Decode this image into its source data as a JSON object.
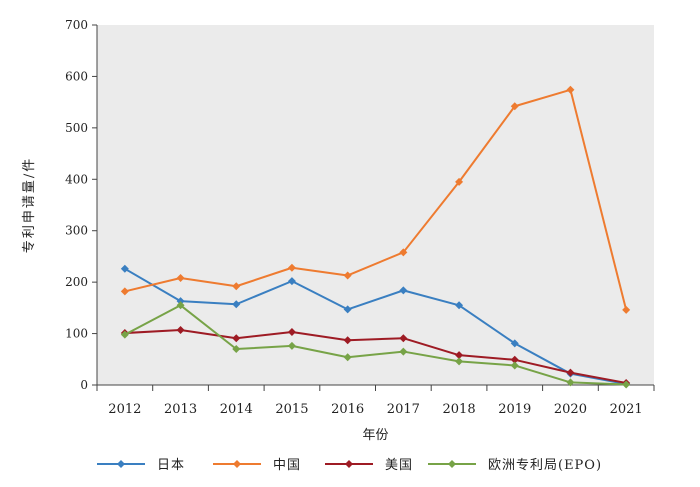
{
  "chart_data": {
    "type": "line",
    "title": "",
    "xlabel": "年份",
    "ylabel": "专利申请量/件",
    "categories": [
      "2012",
      "2013",
      "2014",
      "2015",
      "2016",
      "2017",
      "2018",
      "2019",
      "2020",
      "2021"
    ],
    "ylim": [
      0,
      700
    ],
    "yticks": [
      "0",
      "100",
      "200",
      "300",
      "400",
      "500",
      "600",
      "700"
    ],
    "grid": false,
    "legend_position": "bottom",
    "background": "#ebebeb",
    "series": [
      {
        "name": "日本",
        "color": "#3a7fc1",
        "values": [
          226,
          163,
          157,
          202,
          147,
          184,
          155,
          81,
          22,
          2
        ]
      },
      {
        "name": "中国",
        "color": "#ee7b30",
        "values": [
          182,
          208,
          192,
          228,
          213,
          258,
          395,
          542,
          574,
          146
        ]
      },
      {
        "name": "美国",
        "color": "#9e1b24",
        "values": [
          101,
          107,
          91,
          103,
          87,
          91,
          58,
          49,
          24,
          4
        ]
      },
      {
        "name": "欧洲专利局(EPO)",
        "color": "#77a347",
        "values": [
          98,
          155,
          70,
          76,
          54,
          65,
          46,
          38,
          5,
          1
        ]
      }
    ]
  }
}
